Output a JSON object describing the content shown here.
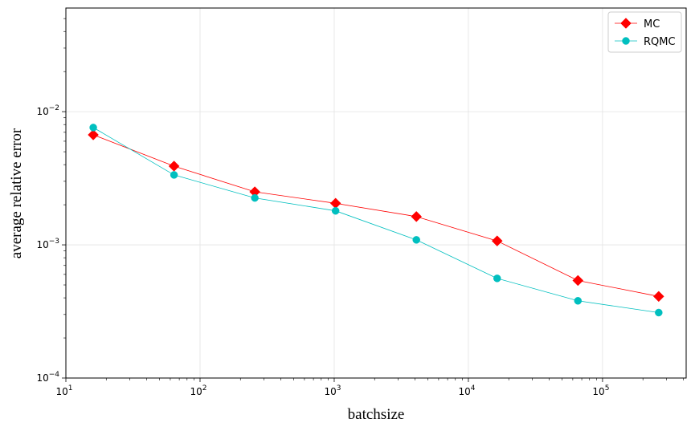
{
  "chart_data": {
    "type": "line",
    "xlabel": "batchsize",
    "ylabel": "average relative error",
    "xscale": "log",
    "yscale": "log",
    "xlim": [
      10,
      420000
    ],
    "ylim": [
      0.0001,
      0.06
    ],
    "grid": true,
    "legend_position": "top-right",
    "x_ticks": [
      {
        "base": "10",
        "exp": "1",
        "value": 10
      },
      {
        "base": "10",
        "exp": "2",
        "value": 100
      },
      {
        "base": "10",
        "exp": "3",
        "value": 1000
      },
      {
        "base": "10",
        "exp": "4",
        "value": 10000
      },
      {
        "base": "10",
        "exp": "5",
        "value": 100000
      }
    ],
    "y_ticks": [
      {
        "base": "10",
        "exp": "−4",
        "value": 0.0001
      },
      {
        "base": "10",
        "exp": "−3",
        "value": 0.001
      },
      {
        "base": "10",
        "exp": "−2",
        "value": 0.01
      }
    ],
    "x": [
      16,
      64,
      256,
      1024,
      4096,
      16384,
      65536,
      262144
    ],
    "series": [
      {
        "name": "MC",
        "color": "#ff0000",
        "marker": "diamond",
        "values": [
          0.0067,
          0.0039,
          0.0025,
          0.00205,
          0.00163,
          0.00107,
          0.00054,
          0.00041
        ]
      },
      {
        "name": "RQMC",
        "color": "#00bfbf",
        "marker": "circle",
        "values": [
          0.0076,
          0.00335,
          0.00225,
          0.0018,
          0.00109,
          0.00056,
          0.00038,
          0.00031
        ]
      }
    ]
  }
}
